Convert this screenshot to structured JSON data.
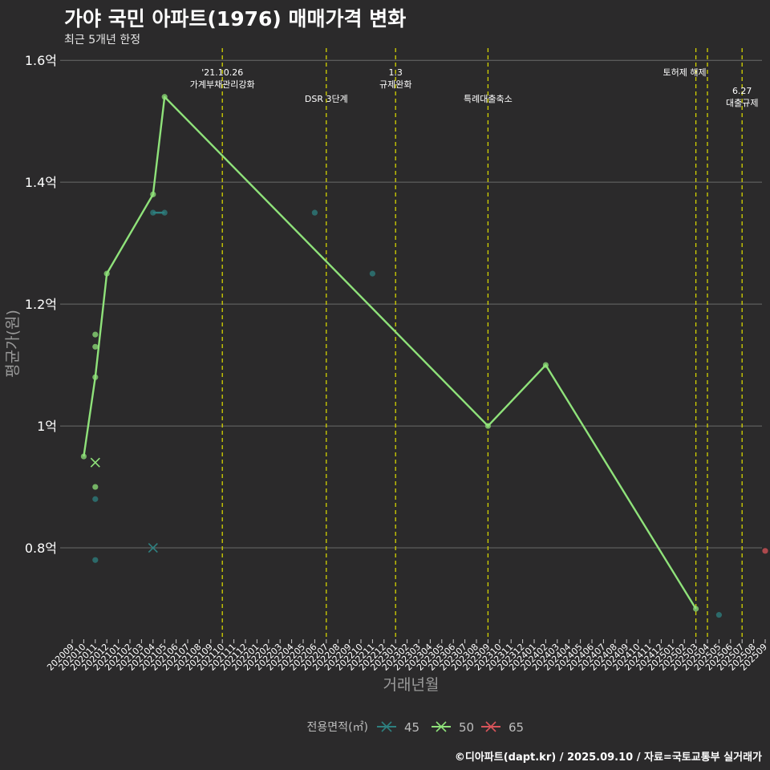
{
  "header": {
    "title": "가야 국민 아파트(1976) 매매가격 변화",
    "subtitle": "최근 5개년 한정"
  },
  "caption": "©디아파트(dapt.kr) / 2025.09.10 / 자료=국토교통부 실거래가",
  "colors": {
    "background": "#2b2a2b",
    "grid": "#6a6a6a",
    "vline": "#d4d400",
    "s45": "#2e8080",
    "s50": "#8fe27a",
    "s65": "#d9545a"
  },
  "chart_data": {
    "type": "line",
    "title": "가야 국민 아파트(1976) 매매가격 변화",
    "subtitle": "최근 5개년 한정",
    "xlabel": "거래년월",
    "ylabel": "평균가(원)",
    "y_ticks": [
      0.8,
      1.0,
      1.2,
      1.4,
      1.6
    ],
    "y_tick_labels": [
      "0.8억",
      "1억",
      "1.2억",
      "1.4억",
      "1.6억"
    ],
    "ylim": [
      0.65,
      1.62
    ],
    "x_categories": [
      "202009",
      "202010",
      "202011",
      "202012",
      "202101",
      "202102",
      "202103",
      "202104",
      "202105",
      "202106",
      "202107",
      "202108",
      "202109",
      "202110",
      "202111",
      "202112",
      "202201",
      "202202",
      "202203",
      "202204",
      "202205",
      "202206",
      "202207",
      "202208",
      "202209",
      "202210",
      "202211",
      "202212",
      "202301",
      "202302",
      "202303",
      "202304",
      "202305",
      "202306",
      "202307",
      "202308",
      "202309",
      "202310",
      "202311",
      "202312",
      "202401",
      "202402",
      "202403",
      "202404",
      "202405",
      "202406",
      "202407",
      "202408",
      "202409",
      "202410",
      "202411",
      "202412",
      "202501",
      "202502",
      "202503",
      "202504",
      "202505",
      "202506",
      "202507",
      "202508",
      "202509"
    ],
    "legend": {
      "title": "전용면적(㎡)",
      "position": "bottom",
      "entries": [
        "45",
        "50",
        "65"
      ]
    },
    "series": [
      {
        "name": "45",
        "line": [
          {
            "x": "202104",
            "y": 1.35
          },
          {
            "x": "202105",
            "y": 1.35
          }
        ],
        "points": [
          {
            "x": "202011",
            "y": 0.88
          },
          {
            "x": "202011",
            "y": 0.78
          },
          {
            "x": "202104",
            "y": 1.35
          },
          {
            "x": "202105",
            "y": 1.35
          },
          {
            "x": "202206",
            "y": 1.35
          },
          {
            "x": "202211",
            "y": 1.25
          },
          {
            "x": "202505",
            "y": 0.69
          }
        ],
        "cancelled": [
          {
            "x": "202104",
            "y": 0.8
          }
        ]
      },
      {
        "name": "50",
        "line": [
          {
            "x": "202010",
            "y": 0.95
          },
          {
            "x": "202011",
            "y": 1.08
          },
          {
            "x": "202012",
            "y": 1.25
          },
          {
            "x": "202104",
            "y": 1.38
          },
          {
            "x": "202105",
            "y": 1.54
          },
          {
            "x": "202309",
            "y": 1.0
          },
          {
            "x": "202402",
            "y": 1.1
          },
          {
            "x": "202503",
            "y": 0.7
          }
        ],
        "points": [
          {
            "x": "202010",
            "y": 0.95
          },
          {
            "x": "202011",
            "y": 1.15
          },
          {
            "x": "202011",
            "y": 1.13
          },
          {
            "x": "202011",
            "y": 1.08
          },
          {
            "x": "202011",
            "y": 0.9
          },
          {
            "x": "202012",
            "y": 1.25
          },
          {
            "x": "202104",
            "y": 1.38
          },
          {
            "x": "202105",
            "y": 1.54
          },
          {
            "x": "202309",
            "y": 1.0
          },
          {
            "x": "202402",
            "y": 1.1
          },
          {
            "x": "202503",
            "y": 0.7
          }
        ],
        "cancelled": [
          {
            "x": "202011",
            "y": 0.94
          }
        ]
      },
      {
        "name": "65",
        "line": [],
        "points": [
          {
            "x": "202509",
            "y": 0.795
          }
        ],
        "cancelled": []
      }
    ],
    "events": [
      {
        "x": "202110",
        "lines": [
          "'21.10.26",
          "가계부채관리강화"
        ],
        "row": 1
      },
      {
        "x": "202207",
        "lines": [
          "DSR 3단계"
        ],
        "row": 2
      },
      {
        "x": "202301",
        "lines": [
          "1.3",
          "규제완화"
        ],
        "row": 1
      },
      {
        "x": "202309",
        "lines": [
          "특례대출축소"
        ],
        "row": 2
      },
      {
        "x": "202503",
        "lines": [
          "토허제 해제"
        ],
        "row": 1,
        "dx": -14
      },
      {
        "x": "202504",
        "lines": [],
        "row": 1
      },
      {
        "x": "202507",
        "lines": [
          "6.27",
          "대출규제"
        ],
        "row": 3
      }
    ]
  }
}
